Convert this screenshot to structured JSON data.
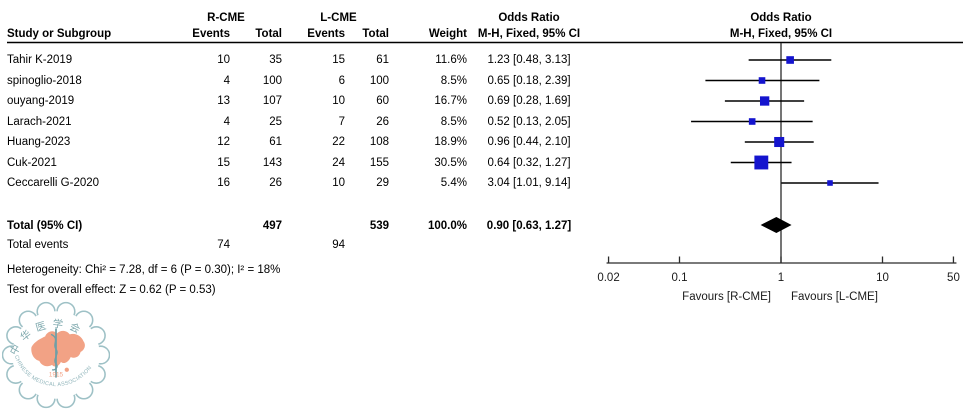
{
  "header": {
    "group1": "R-CME",
    "group2": "L-CME",
    "col_study": "Study or Subgroup",
    "col_events": "Events",
    "col_total": "Total",
    "col_weight": "Weight",
    "or_title": "Odds Ratio",
    "method": "M-H, Fixed, 95% CI"
  },
  "chart_data": {
    "type": "forest",
    "effect_measure": "Odds Ratio",
    "method": "M-H, Fixed, 95% CI",
    "x_scale": "log",
    "x_range": [
      0.02,
      50
    ],
    "x_ticks": [
      0.02,
      0.1,
      1,
      10,
      50
    ],
    "tick_labels": [
      "0.02",
      "0.1",
      "1",
      "10",
      "50"
    ],
    "favours_left": "Favours [R-CME]",
    "favours_right": "Favours [L-CME]",
    "marker_color": "#1414CE",
    "studies": [
      {
        "name": "Tahir K-2019",
        "events_rcme": "10",
        "total_rcme": "35",
        "events_lcme": "15",
        "total_lcme": "61",
        "weight": "11.6%",
        "weight_pct": 11.6,
        "or": 1.23,
        "ci_low": 0.48,
        "ci_high": 3.13,
        "ci_text": "1.23 [0.48, 3.13]"
      },
      {
        "name": "spinoglio-2018",
        "events_rcme": "4",
        "total_rcme": "100",
        "events_lcme": "6",
        "total_lcme": "100",
        "weight": "8.5%",
        "weight_pct": 8.5,
        "or": 0.65,
        "ci_low": 0.18,
        "ci_high": 2.39,
        "ci_text": "0.65 [0.18, 2.39]"
      },
      {
        "name": "ouyang-2019",
        "events_rcme": "13",
        "total_rcme": "107",
        "events_lcme": "10",
        "total_lcme": "60",
        "weight": "16.7%",
        "weight_pct": 16.7,
        "or": 0.69,
        "ci_low": 0.28,
        "ci_high": 1.69,
        "ci_text": "0.69 [0.28, 1.69]"
      },
      {
        "name": "Larach-2021",
        "events_rcme": "4",
        "total_rcme": "25",
        "events_lcme": "7",
        "total_lcme": "26",
        "weight": "8.5%",
        "weight_pct": 8.5,
        "or": 0.52,
        "ci_low": 0.13,
        "ci_high": 2.05,
        "ci_text": "0.52 [0.13, 2.05]"
      },
      {
        "name": "Huang-2023",
        "events_rcme": "12",
        "total_rcme": "61",
        "events_lcme": "22",
        "total_lcme": "108",
        "weight": "18.9%",
        "weight_pct": 18.9,
        "or": 0.96,
        "ci_low": 0.44,
        "ci_high": 2.1,
        "ci_text": "0.96 [0.44, 2.10]"
      },
      {
        "name": "Cuk-2021",
        "events_rcme": "15",
        "total_rcme": "143",
        "events_lcme": "24",
        "total_lcme": "155",
        "weight": "30.5%",
        "weight_pct": 30.5,
        "or": 0.64,
        "ci_low": 0.32,
        "ci_high": 1.27,
        "ci_text": "0.64 [0.32, 1.27]"
      },
      {
        "name": "Ceccarelli G-2020",
        "events_rcme": "16",
        "total_rcme": "26",
        "events_lcme": "10",
        "total_lcme": "29",
        "weight": "5.4%",
        "weight_pct": 5.4,
        "or": 3.04,
        "ci_low": 1.01,
        "ci_high": 9.14,
        "ci_text": "3.04 [1.01, 9.14]"
      }
    ],
    "total": {
      "label": "Total (95% CI)",
      "total_rcme": "497",
      "total_lcme": "539",
      "weight": "100.0%",
      "or": 0.9,
      "ci_low": 0.63,
      "ci_high": 1.27,
      "ci_text": "0.90 [0.63, 1.27]"
    },
    "total_events": {
      "label": "Total events",
      "events_rcme": "74",
      "events_lcme": "94"
    },
    "heterogeneity": "Heterogeneity: Chi² = 7.28, df = 6 (P = 0.30); I² = 18%",
    "overall_effect": "Test for overall effect: Z = 0.62 (P = 0.53)"
  },
  "logo": {
    "organization": "Chinese Medical Association",
    "top_text": "中华医学会",
    "year": "1915",
    "bottom_text": "CHINESE MEDICAL ASSOCIATION",
    "ring_color": "#9EC1C6",
    "map_color": "#F2A285"
  }
}
